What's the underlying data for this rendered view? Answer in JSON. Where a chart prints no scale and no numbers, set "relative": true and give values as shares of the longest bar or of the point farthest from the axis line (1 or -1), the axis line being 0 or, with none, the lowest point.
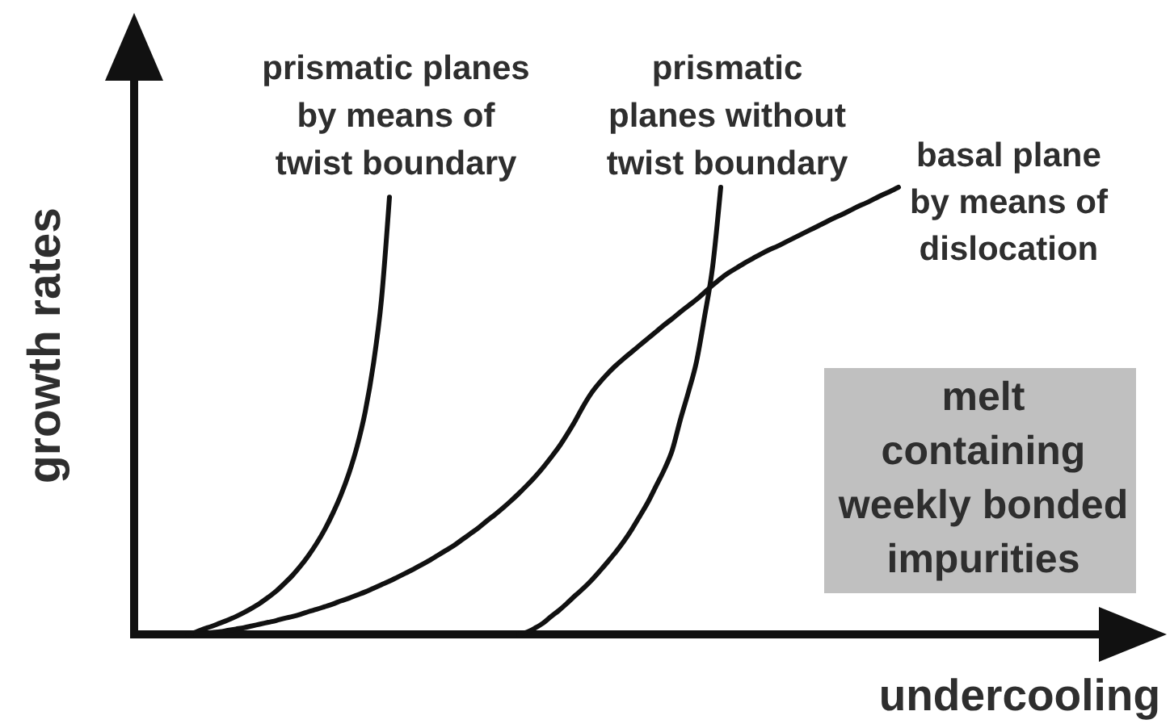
{
  "chart_data": {
    "type": "line",
    "relative": true,
    "xlabel": "undercooling",
    "ylabel": "growth rates",
    "categories": [
      null,
      null,
      null,
      null,
      null,
      null,
      null,
      null,
      null,
      null,
      null,
      null,
      null,
      null,
      null,
      null,
      null,
      null,
      null,
      null,
      null,
      null,
      null,
      null,
      null,
      null,
      null,
      null,
      null,
      null,
      null,
      null,
      null,
      null,
      null,
      null,
      null,
      null,
      null,
      null,
      null,
      null,
      null,
      null,
      null,
      null,
      null,
      null,
      null,
      null,
      null,
      null,
      null,
      null,
      null,
      null,
      null,
      null,
      null,
      null,
      null,
      null,
      null,
      null,
      null,
      null,
      null,
      null,
      null,
      null,
      null,
      null,
      null,
      null,
      null,
      null,
      null,
      null,
      null,
      null,
      null,
      null,
      null,
      null,
      null,
      null,
      null,
      null,
      null
    ],
    "series": [
      {
        "name": "prismatic planes\nby means of\ntwist boundary",
        "color": "#111111",
        "values": [
          0,
          0.005,
          0.012,
          0.018,
          0.025,
          0.032,
          0.04,
          0.049,
          0.059,
          0.07,
          0.083,
          0.097,
          0.114,
          0.132,
          0.153,
          0.177,
          0.204,
          0.235,
          0.271,
          0.312,
          0.361,
          0.421,
          0.498,
          0.603,
          0.747,
          0.978,
          null,
          null,
          null,
          null,
          null,
          null,
          null,
          null,
          null,
          null,
          null,
          null,
          null,
          null,
          null,
          null,
          null,
          null,
          null,
          null,
          null,
          null,
          null,
          null,
          null,
          null,
          null,
          null,
          null,
          null,
          null,
          null,
          null,
          null,
          null,
          null,
          null,
          null,
          null,
          null,
          null,
          null,
          null,
          null,
          null,
          null,
          null,
          null,
          null,
          null,
          null,
          null,
          null,
          null,
          null,
          null,
          null,
          null,
          null,
          null,
          null,
          null,
          null
        ]
      },
      {
        "name": "prismatic\nplanes without\ntwist boundary",
        "color": "#111111",
        "values": [
          null,
          null,
          null,
          null,
          null,
          null,
          null,
          null,
          null,
          null,
          null,
          null,
          null,
          null,
          null,
          null,
          null,
          null,
          null,
          null,
          null,
          null,
          null,
          null,
          null,
          null,
          null,
          null,
          null,
          null,
          null,
          null,
          null,
          null,
          null,
          null,
          null,
          null,
          null,
          null,
          null,
          0,
          0.005,
          0.014,
          0.025,
          0.04,
          0.054,
          0.07,
          0.087,
          0.103,
          0.121,
          0.141,
          0.162,
          0.184,
          0.208,
          0.235,
          0.265,
          0.296,
          0.332,
          0.368,
          0.412,
          0.48,
          0.542,
          0.61,
          0.711,
          0.823,
          1,
          null,
          null,
          null,
          null,
          null,
          null,
          null,
          null,
          null,
          null,
          null,
          null,
          null,
          null,
          null,
          null,
          null,
          null,
          null,
          null,
          null,
          null
        ]
      },
      {
        "name": "basal plane\nby means of\ndislocation",
        "color": "#111111",
        "values": [
          null,
          0,
          0.001,
          0.004,
          0.006,
          0.009,
          0.012,
          0.015,
          0.019,
          0.023,
          0.027,
          0.031,
          0.036,
          0.04,
          0.045,
          0.051,
          0.056,
          0.062,
          0.068,
          0.075,
          0.081,
          0.088,
          0.095,
          0.103,
          0.111,
          0.119,
          0.128,
          0.137,
          0.146,
          0.156,
          0.166,
          0.177,
          0.188,
          0.199,
          0.212,
          0.225,
          0.238,
          0.253,
          0.267,
          0.282,
          0.298,
          0.315,
          0.333,
          0.352,
          0.373,
          0.396,
          0.42,
          0.448,
          0.478,
          0.511,
          0.54,
          0.563,
          0.583,
          0.601,
          0.617,
          0.632,
          0.647,
          0.662,
          0.677,
          0.692,
          0.706,
          0.721,
          0.735,
          0.749,
          0.765,
          0.781,
          0.796,
          0.809,
          0.82,
          0.831,
          0.841,
          0.851,
          0.86,
          0.868,
          0.877,
          0.886,
          0.895,
          0.904,
          0.913,
          0.922,
          0.931,
          0.939,
          0.948,
          0.957,
          0.965,
          0.974,
          0.983,
          0.991,
          1
        ]
      }
    ],
    "annotations": [
      "melt\ncontaining\nweekly bonded\nimpurities"
    ]
  }
}
